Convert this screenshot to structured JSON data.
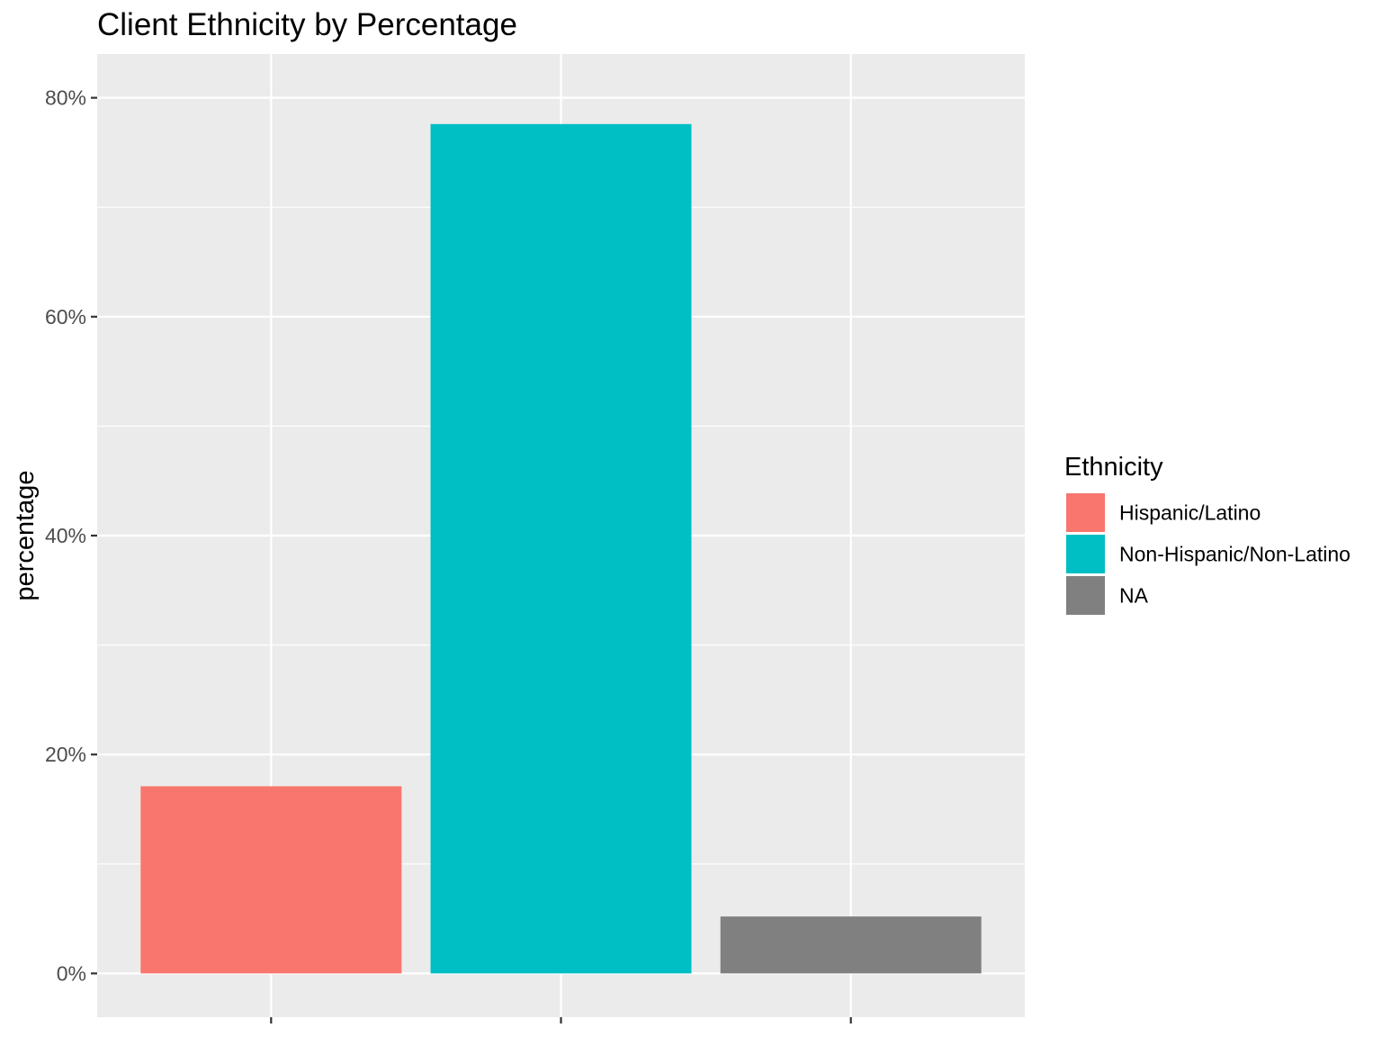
{
  "chart_data": {
    "type": "bar",
    "title": "Client Ethnicity by Percentage",
    "xlabel": "",
    "ylabel": "percentage",
    "categories": [
      "Hispanic/Latino",
      "Non-Hispanic/Non-Latino",
      "NA"
    ],
    "values": [
      17.1,
      77.6,
      5.2
    ],
    "colors": [
      "#F8766D",
      "#00BFC4",
      "#808080"
    ],
    "ylim": [
      -4,
      84
    ],
    "yticks": [
      0,
      20,
      40,
      60,
      80
    ],
    "ytick_labels": [
      "0%",
      "20%",
      "40%",
      "60%",
      "80%"
    ],
    "x_tick_labels_shown": false,
    "grid": true,
    "panel_background": "#EBEBEB",
    "grid_color": "#FFFFFF",
    "legend": {
      "title": "Ethnicity",
      "position": "right",
      "entries": [
        "Hispanic/Latino",
        "Non-Hispanic/Non-Latino",
        "NA"
      ]
    }
  }
}
